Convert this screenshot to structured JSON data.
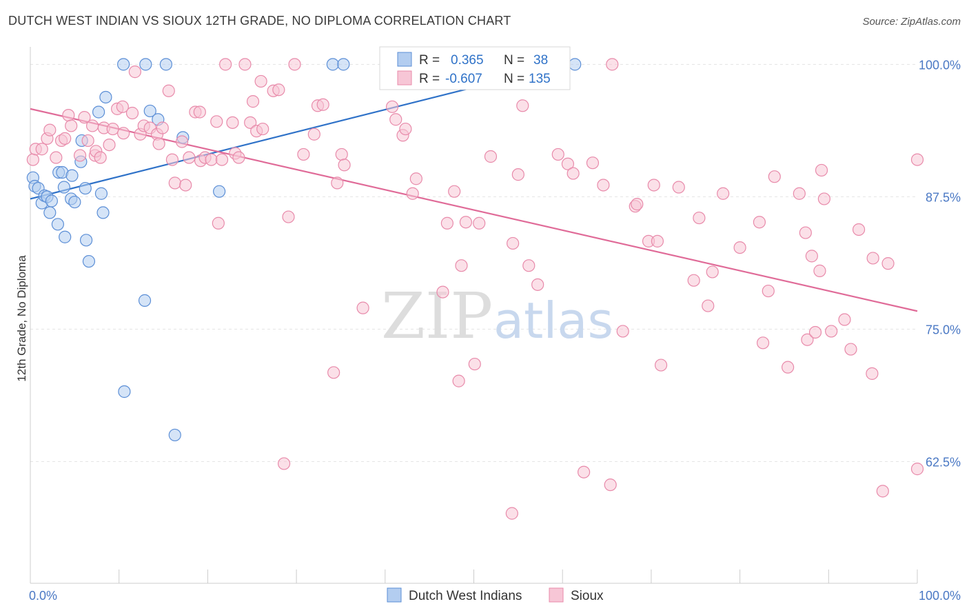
{
  "title": "DUTCH WEST INDIAN VS SIOUX 12TH GRADE, NO DIPLOMA CORRELATION CHART",
  "source": "Source: ZipAtlas.com",
  "watermark": {
    "zip": "ZIP",
    "atlas": "atlas"
  },
  "legend": {
    "rows": [
      {
        "r_label": "R =",
        "r_value": "0.365",
        "n_label": "N =",
        "n_value": "38"
      },
      {
        "r_label": "R =",
        "r_value": "-0.607",
        "n_label": "N =",
        "n_value": "135"
      }
    ]
  },
  "bottom_legend": [
    "Dutch West Indians",
    "Sioux"
  ],
  "chart_data": {
    "type": "scatter",
    "title": "DUTCH WEST INDIAN VS SIOUX 12TH GRADE, NO DIPLOMA CORRELATION CHART",
    "xlabel": "",
    "ylabel": "12th Grade, No Diploma",
    "xlim": [
      0,
      100
    ],
    "ylim": [
      51,
      101
    ],
    "x_tick_labels": [
      "0.0%",
      "100.0%"
    ],
    "y_ticks": [
      {
        "value": 100,
        "label": "100.0%"
      },
      {
        "value": 87.5,
        "label": "87.5%"
      },
      {
        "value": 75,
        "label": "75.0%"
      },
      {
        "value": 62.5,
        "label": "62.5%"
      }
    ],
    "grid": true,
    "legend_position": "top-center",
    "colors": {
      "dutch_fill": "#b3cdf0",
      "dutch_stroke": "#5b8ed6",
      "dutch_line": "#2f72c8",
      "sioux_fill": "#f7c6d6",
      "sioux_stroke": "#e88aaa",
      "sioux_line": "#e06b98",
      "legend_value": "#2f72c8"
    },
    "series": [
      {
        "name": "Dutch West Indians",
        "r": 0.365,
        "n": 38,
        "trend": {
          "x": [
            0,
            56.5
          ],
          "y": [
            87.3,
            99.2
          ]
        },
        "trend_dashed": {
          "x": [
            56.5,
            58.5
          ],
          "y": [
            99.2,
            99.6
          ]
        },
        "points": [
          [
            0.3,
            89.3
          ],
          [
            0.5,
            88.5
          ],
          [
            0.9,
            88.3
          ],
          [
            1.3,
            86.9
          ],
          [
            1.6,
            87.6
          ],
          [
            1.9,
            87.5
          ],
          [
            2.2,
            86.0
          ],
          [
            2.4,
            87.1
          ],
          [
            3.1,
            84.9
          ],
          [
            3.2,
            89.8
          ],
          [
            3.6,
            89.8
          ],
          [
            3.8,
            88.4
          ],
          [
            3.9,
            83.7
          ],
          [
            4.6,
            87.3
          ],
          [
            4.7,
            89.5
          ],
          [
            5.0,
            87.0
          ],
          [
            5.7,
            90.8
          ],
          [
            5.8,
            92.8
          ],
          [
            6.2,
            88.3
          ],
          [
            6.3,
            83.4
          ],
          [
            6.6,
            81.4
          ],
          [
            7.7,
            95.5
          ],
          [
            8.0,
            87.8
          ],
          [
            8.2,
            86.0
          ],
          [
            8.5,
            96.9
          ],
          [
            10.5,
            100.0
          ],
          [
            10.6,
            69.1
          ],
          [
            12.9,
            77.7
          ],
          [
            13.0,
            100.0
          ],
          [
            13.5,
            95.6
          ],
          [
            14.4,
            94.8
          ],
          [
            15.3,
            100.0
          ],
          [
            16.3,
            65.0
          ],
          [
            17.2,
            93.1
          ],
          [
            21.3,
            88.0
          ],
          [
            34.1,
            100.0
          ],
          [
            35.3,
            100.0
          ],
          [
            61.4,
            100.0
          ]
        ]
      },
      {
        "name": "Sioux",
        "r": -0.607,
        "n": 135,
        "trend": {
          "x": [
            0,
            100
          ],
          "y": [
            95.8,
            76.7
          ]
        },
        "points": [
          [
            0.3,
            91.0
          ],
          [
            0.6,
            92.0
          ],
          [
            1.3,
            92.0
          ],
          [
            1.9,
            93.0
          ],
          [
            2.2,
            93.8
          ],
          [
            2.9,
            91.2
          ],
          [
            3.5,
            92.8
          ],
          [
            3.9,
            93.0
          ],
          [
            4.3,
            95.2
          ],
          [
            4.6,
            94.2
          ],
          [
            5.6,
            91.4
          ],
          [
            6.1,
            95.0
          ],
          [
            6.5,
            92.8
          ],
          [
            7.0,
            94.2
          ],
          [
            7.3,
            91.4
          ],
          [
            7.4,
            91.8
          ],
          [
            7.9,
            91.2
          ],
          [
            8.3,
            94.0
          ],
          [
            8.9,
            92.4
          ],
          [
            9.3,
            93.9
          ],
          [
            9.8,
            95.8
          ],
          [
            10.4,
            96.0
          ],
          [
            10.5,
            93.5
          ],
          [
            11.5,
            95.4
          ],
          [
            11.8,
            99.3
          ],
          [
            12.4,
            93.4
          ],
          [
            12.8,
            94.2
          ],
          [
            13.5,
            94.0
          ],
          [
            14.3,
            93.4
          ],
          [
            14.5,
            92.5
          ],
          [
            14.9,
            94.0
          ],
          [
            15.6,
            97.5
          ],
          [
            16.0,
            91.0
          ],
          [
            16.3,
            88.8
          ],
          [
            17.1,
            92.7
          ],
          [
            17.5,
            88.6
          ],
          [
            17.9,
            91.2
          ],
          [
            18.6,
            95.5
          ],
          [
            19.1,
            95.5
          ],
          [
            19.2,
            90.9
          ],
          [
            19.7,
            91.2
          ],
          [
            20.4,
            91.0
          ],
          [
            21.0,
            94.6
          ],
          [
            21.2,
            85.0
          ],
          [
            21.6,
            91.0
          ],
          [
            22.0,
            100.0
          ],
          [
            22.8,
            94.5
          ],
          [
            23.1,
            91.6
          ],
          [
            23.5,
            91.2
          ],
          [
            24.2,
            100.0
          ],
          [
            24.8,
            94.5
          ],
          [
            25.1,
            96.5
          ],
          [
            25.5,
            93.7
          ],
          [
            26.0,
            98.4
          ],
          [
            26.2,
            93.9
          ],
          [
            27.4,
            97.5
          ],
          [
            28.0,
            97.6
          ],
          [
            28.6,
            62.3
          ],
          [
            29.1,
            85.6
          ],
          [
            29.8,
            100.0
          ],
          [
            30.8,
            91.5
          ],
          [
            32.0,
            93.4
          ],
          [
            32.4,
            96.1
          ],
          [
            33.0,
            96.2
          ],
          [
            34.2,
            70.9
          ],
          [
            34.6,
            88.8
          ],
          [
            35.1,
            91.5
          ],
          [
            35.4,
            90.5
          ],
          [
            37.5,
            77.0
          ],
          [
            40.8,
            96.0
          ],
          [
            41.2,
            94.8
          ],
          [
            42.0,
            93.3
          ],
          [
            42.3,
            93.9
          ],
          [
            43.1,
            87.8
          ],
          [
            43.5,
            89.2
          ],
          [
            46.5,
            78.5
          ],
          [
            47.0,
            85.0
          ],
          [
            47.8,
            88.0
          ],
          [
            48.3,
            70.1
          ],
          [
            48.6,
            81.0
          ],
          [
            49.1,
            85.1
          ],
          [
            50.1,
            71.7
          ],
          [
            50.6,
            85.0
          ],
          [
            51.9,
            91.3
          ],
          [
            54.3,
            57.6
          ],
          [
            54.4,
            83.1
          ],
          [
            55.0,
            89.6
          ],
          [
            55.5,
            96.1
          ],
          [
            56.2,
            81.0
          ],
          [
            57.2,
            79.2
          ],
          [
            59.5,
            91.5
          ],
          [
            60.6,
            90.6
          ],
          [
            61.2,
            89.7
          ],
          [
            62.4,
            61.5
          ],
          [
            63.4,
            90.7
          ],
          [
            64.6,
            88.6
          ],
          [
            65.4,
            60.3
          ],
          [
            66.8,
            74.8
          ],
          [
            68.2,
            86.6
          ],
          [
            68.4,
            86.8
          ],
          [
            69.7,
            83.3
          ],
          [
            70.3,
            88.6
          ],
          [
            70.7,
            83.3
          ],
          [
            71.1,
            71.6
          ],
          [
            73.1,
            88.4
          ],
          [
            74.8,
            79.6
          ],
          [
            75.4,
            85.5
          ],
          [
            76.4,
            77.2
          ],
          [
            76.9,
            80.4
          ],
          [
            78.1,
            87.8
          ],
          [
            80.0,
            82.7
          ],
          [
            82.2,
            85.1
          ],
          [
            82.6,
            73.7
          ],
          [
            83.2,
            78.6
          ],
          [
            83.9,
            89.4
          ],
          [
            85.4,
            71.4
          ],
          [
            86.7,
            87.8
          ],
          [
            87.4,
            84.1
          ],
          [
            87.6,
            74.0
          ],
          [
            88.1,
            81.9
          ],
          [
            88.5,
            74.7
          ],
          [
            89.0,
            80.5
          ],
          [
            89.2,
            90.0
          ],
          [
            89.5,
            87.3
          ],
          [
            90.3,
            74.8
          ],
          [
            91.8,
            75.9
          ],
          [
            92.5,
            73.1
          ],
          [
            93.4,
            84.4
          ],
          [
            94.9,
            70.8
          ],
          [
            95.0,
            81.7
          ],
          [
            96.1,
            59.7
          ],
          [
            96.7,
            81.2
          ],
          [
            100.0,
            91.0
          ],
          [
            100.0,
            61.8
          ],
          [
            65.6,
            100.0
          ]
        ]
      }
    ]
  }
}
